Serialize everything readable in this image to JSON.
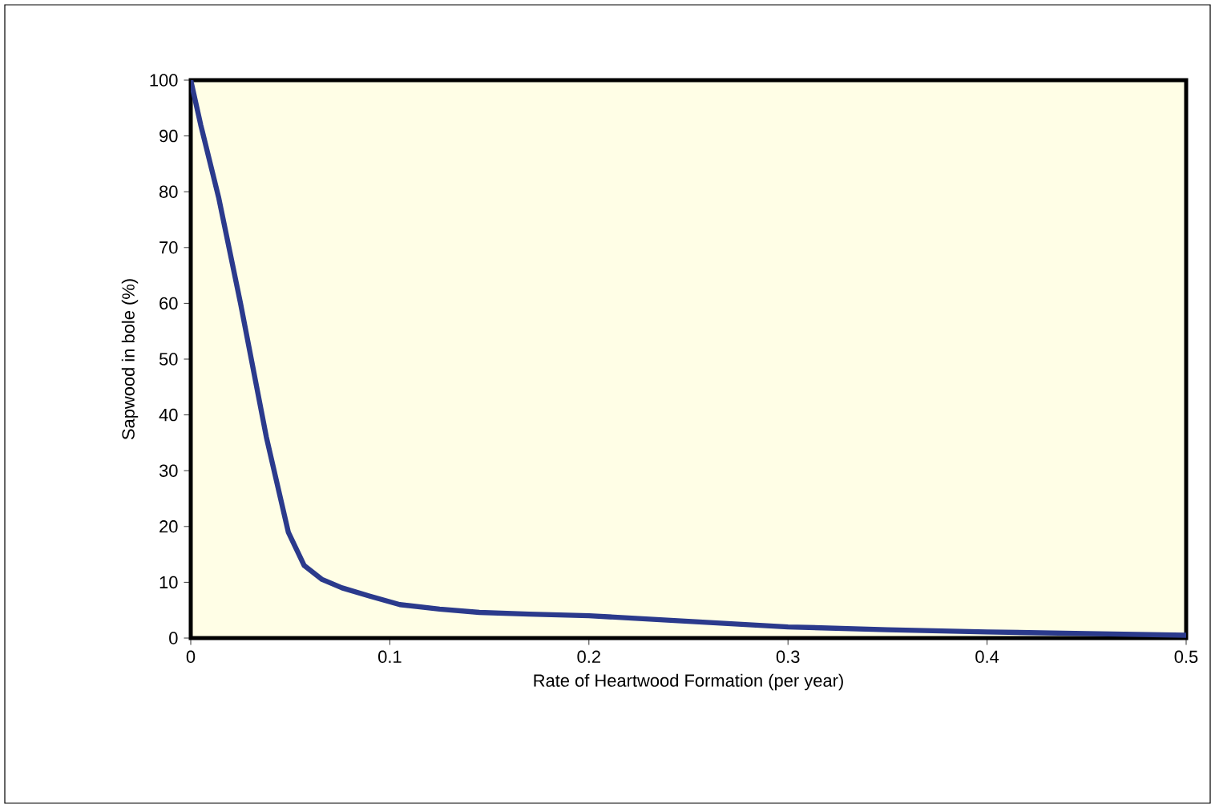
{
  "chart_data": {
    "type": "line",
    "xlabel": "Rate of Heartwood Formation (per year)",
    "ylabel": "Sapwood in bole (%)",
    "x": [
      0,
      0.005,
      0.014,
      0.025,
      0.038,
      0.049,
      0.057,
      0.066,
      0.076,
      0.09,
      0.105,
      0.125,
      0.145,
      0.17,
      0.2,
      0.25,
      0.3,
      0.35,
      0.4,
      0.45,
      0.5
    ],
    "series": [
      {
        "color": "#2b3a8c",
        "values": [
          100,
          92,
          79,
          60,
          36,
          19,
          13,
          10.5,
          9,
          7.5,
          6,
          5.2,
          4.6,
          4.3,
          4,
          3,
          2,
          1.5,
          1.1,
          0.8,
          0.5
        ]
      }
    ],
    "xlim": [
      0,
      0.5
    ],
    "ylim": [
      0,
      100
    ],
    "xticks": [
      0,
      0.1,
      0.2,
      0.3,
      0.4,
      0.5
    ],
    "yticks": [
      0,
      10,
      20,
      30,
      40,
      50,
      60,
      70,
      80,
      90,
      100
    ],
    "marker": "none",
    "line_style": "solid"
  }
}
